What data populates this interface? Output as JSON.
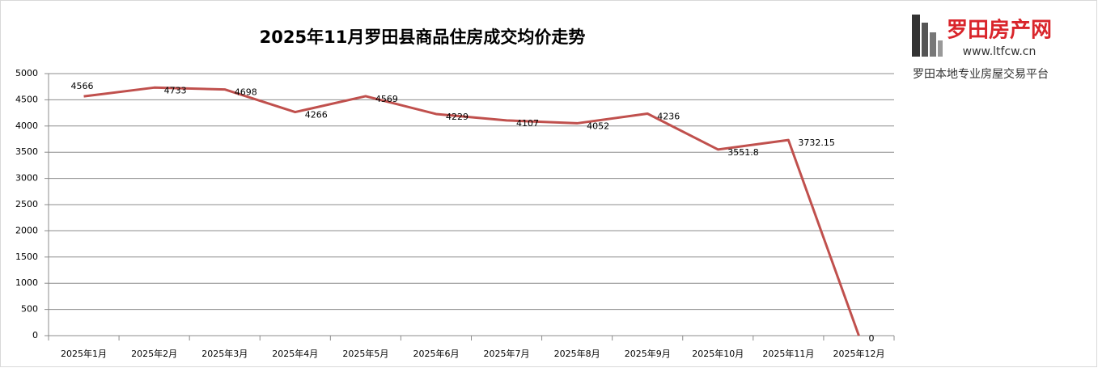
{
  "chart_data": {
    "type": "line",
    "title": "2025年11月罗田县商品住房成交均价走势",
    "categories": [
      "2025年1月",
      "2025年2月",
      "2025年3月",
      "2025年4月",
      "2025年5月",
      "2025年6月",
      "2025年7月",
      "2025年8月",
      "2025年9月",
      "2025年10月",
      "2025年11月",
      "2025年12月"
    ],
    "values": [
      4566,
      4733,
      4698,
      4266,
      4569,
      4229,
      4107,
      4052,
      4236,
      3551.8,
      3732.15,
      0
    ],
    "color": "#c0504d",
    "ylim": [
      0,
      5000
    ],
    "yticks": [
      0,
      500,
      1000,
      1500,
      2000,
      2500,
      3000,
      3500,
      4000,
      4500,
      5000
    ],
    "grid": true
  },
  "logo": {
    "name": "罗田房产网",
    "url": "www.ltfcw.cn",
    "slogan": "罗田本地专业房屋交易平台"
  }
}
